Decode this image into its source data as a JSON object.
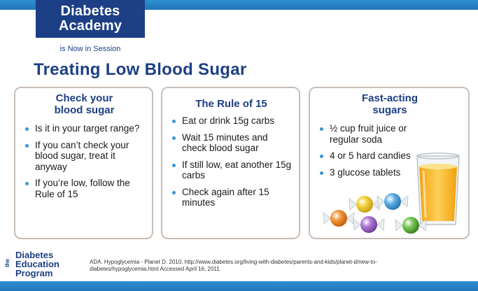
{
  "header": {
    "logo_line1": "Diabetes",
    "logo_line2": "Academy",
    "tagline": "is Now in Session"
  },
  "title": "Treating Low Blood Sugar",
  "cards": [
    {
      "title_line1": "Check your",
      "title_line2": "blood sugar",
      "bullets": [
        "Is it in your target range?",
        "If you can’t check your blood sugar, treat it anyway",
        "If you’re low, follow the Rule of 15"
      ]
    },
    {
      "title_line1": "The Rule of 15",
      "bullets": [
        "Eat or drink 15g carbs",
        "Wait 15 minutes and check blood sugar",
        "If still low, eat another 15g carbs",
        "Check again after 15 minutes"
      ]
    },
    {
      "title_line1": "Fast-acting",
      "title_line2": "sugars",
      "bullets": [
        "½ cup fruit juice or regular soda",
        "4 or 5 hard candies",
        "3 glucose tablets"
      ]
    }
  ],
  "footer": {
    "logo_side": "the",
    "logo_line1": "Diabetes",
    "logo_line2": "Education",
    "logo_line3": "Program",
    "citation": "ADA. Hypoglycemia - Planet D. 2010. http://www.diabetes.org/living-with-diabetes/parents-and-kids/planet-d/new-to-diabetes/hypoglycemia.html Accessed April 16, 2011."
  },
  "icons": {
    "bullet": "bullet-dot",
    "juice": "juice-glass-icon",
    "candies": "hard-candies-icon"
  },
  "colors": {
    "brand_navy": "#1d3f86",
    "bar_blue": "#1f76b9",
    "bullet_blue": "#3a96d3",
    "card_border": "#c8beb6",
    "juice": "#f6b21b"
  }
}
